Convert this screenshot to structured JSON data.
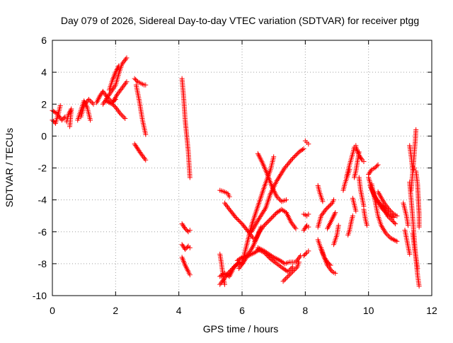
{
  "chart_data": {
    "type": "scatter",
    "title": "Day 079 of 2026, Sidereal Day-to-day VTEC variation (SDTVAR) for receiver ptgg",
    "xlabel": "GPS time / hours",
    "ylabel": "SDTVAR / TECUs",
    "xlim": [
      0,
      12
    ],
    "ylim": [
      -10,
      6
    ],
    "xticks": [
      "0",
      "2",
      "4",
      "6",
      "8",
      "10",
      "12"
    ],
    "yticks": [
      "-10",
      "-8",
      "-6",
      "-4",
      "-2",
      "0",
      "2",
      "4",
      "6"
    ],
    "grid": true,
    "marker": "+",
    "color": "#ff0000",
    "tracks": [
      [
        [
          0.0,
          1.0
        ],
        [
          0.1,
          0.8
        ],
        [
          0.2,
          1.5
        ],
        [
          0.25,
          1.9
        ]
      ],
      [
        [
          0.0,
          1.6
        ],
        [
          0.15,
          1.4
        ],
        [
          0.3,
          1.0
        ],
        [
          0.4,
          1.2
        ]
      ],
      [
        [
          0.45,
          0.9
        ],
        [
          0.5,
          1.3
        ],
        [
          0.6,
          1.7
        ],
        [
          0.55,
          0.6
        ]
      ],
      [
        [
          0.8,
          1.0
        ],
        [
          0.9,
          1.6
        ],
        [
          1.0,
          2.2
        ],
        [
          1.1,
          1.8
        ],
        [
          1.2,
          1.0
        ]
      ],
      [
        [
          0.9,
          1.2
        ],
        [
          1.0,
          1.9
        ],
        [
          1.15,
          2.3
        ],
        [
          1.3,
          2.0
        ]
      ],
      [
        [
          1.4,
          2.1
        ],
        [
          1.5,
          2.5
        ],
        [
          1.6,
          2.8
        ],
        [
          1.75,
          2.4
        ],
        [
          1.9,
          2.1
        ],
        [
          2.0,
          2.3
        ]
      ],
      [
        [
          1.6,
          2.0
        ],
        [
          1.8,
          2.6
        ],
        [
          2.0,
          3.2
        ],
        [
          2.1,
          3.9
        ],
        [
          2.2,
          4.5
        ],
        [
          2.35,
          4.9
        ]
      ],
      [
        [
          1.8,
          2.9
        ],
        [
          1.9,
          3.5
        ],
        [
          2.0,
          4.0
        ],
        [
          2.1,
          4.4
        ]
      ],
      [
        [
          1.7,
          2.2
        ],
        [
          1.9,
          2.0
        ],
        [
          2.0,
          1.8
        ],
        [
          2.15,
          1.4
        ],
        [
          2.3,
          1.1
        ]
      ],
      [
        [
          1.9,
          2.1
        ],
        [
          2.05,
          2.6
        ],
        [
          2.2,
          3.0
        ],
        [
          2.35,
          3.4
        ]
      ],
      [
        [
          2.6,
          3.6
        ],
        [
          2.7,
          3.4
        ],
        [
          2.8,
          3.3
        ],
        [
          2.9,
          3.2
        ],
        [
          2.95,
          3.2
        ]
      ],
      [
        [
          2.65,
          3.2
        ],
        [
          2.75,
          2.2
        ],
        [
          2.85,
          1.0
        ],
        [
          2.95,
          0.1
        ]
      ],
      [
        [
          2.6,
          -0.5
        ],
        [
          2.7,
          -0.8
        ],
        [
          2.8,
          -1.1
        ],
        [
          2.95,
          -1.5
        ]
      ],
      [
        [
          4.1,
          3.6
        ],
        [
          4.15,
          2.5
        ],
        [
          4.2,
          1.0
        ],
        [
          4.3,
          -1.0
        ],
        [
          4.35,
          -2.6
        ]
      ],
      [
        [
          4.1,
          -5.5
        ],
        [
          4.2,
          -5.8
        ],
        [
          4.3,
          -6.0
        ],
        [
          4.35,
          -5.9
        ]
      ],
      [
        [
          4.1,
          -6.8
        ],
        [
          4.2,
          -7.1
        ],
        [
          4.3,
          -6.9
        ],
        [
          4.35,
          -7.0
        ]
      ],
      [
        [
          4.1,
          -7.6
        ],
        [
          4.2,
          -8.1
        ],
        [
          4.3,
          -8.5
        ],
        [
          4.35,
          -8.7
        ]
      ],
      [
        [
          5.3,
          -7.4
        ],
        [
          5.35,
          -8.0
        ],
        [
          5.4,
          -8.8
        ],
        [
          5.45,
          -9.3
        ]
      ],
      [
        [
          5.3,
          -9.3
        ],
        [
          5.45,
          -8.9
        ],
        [
          5.6,
          -8.5
        ],
        [
          5.8,
          -8.1
        ],
        [
          6.0,
          -7.9
        ]
      ],
      [
        [
          5.3,
          -8.8
        ],
        [
          5.45,
          -8.6
        ],
        [
          5.6,
          -8.8
        ],
        [
          5.75,
          -8.2
        ],
        [
          5.9,
          -7.9
        ]
      ],
      [
        [
          5.3,
          -3.4
        ],
        [
          5.45,
          -3.5
        ],
        [
          5.55,
          -3.6
        ],
        [
          5.6,
          -3.8
        ]
      ],
      [
        [
          5.45,
          -4.2
        ],
        [
          5.6,
          -4.6
        ],
        [
          5.8,
          -5.1
        ],
        [
          6.0,
          -5.5
        ],
        [
          6.2,
          -6.0
        ],
        [
          6.35,
          -6.4
        ]
      ],
      [
        [
          5.85,
          -7.8
        ],
        [
          6.0,
          -7.6
        ],
        [
          6.2,
          -7.5
        ],
        [
          6.4,
          -7.3
        ],
        [
          6.55,
          -7.1
        ]
      ],
      [
        [
          5.9,
          -8.3
        ],
        [
          6.05,
          -7.9
        ],
        [
          6.2,
          -7.4
        ],
        [
          6.35,
          -6.9
        ],
        [
          6.5,
          -6.2
        ],
        [
          6.6,
          -5.7
        ]
      ],
      [
        [
          6.0,
          -8.0
        ],
        [
          6.15,
          -6.8
        ],
        [
          6.3,
          -5.6
        ],
        [
          6.5,
          -4.4
        ],
        [
          6.7,
          -3.2
        ],
        [
          6.9,
          -2.1
        ],
        [
          7.0,
          -1.3
        ]
      ],
      [
        [
          6.3,
          -6.0
        ],
        [
          6.5,
          -5.3
        ],
        [
          6.75,
          -4.5
        ],
        [
          6.9,
          -3.6
        ],
        [
          7.1,
          -2.8
        ],
        [
          7.35,
          -2.0
        ],
        [
          7.6,
          -1.4
        ],
        [
          7.8,
          -1.0
        ],
        [
          7.95,
          -0.8
        ]
      ],
      [
        [
          6.5,
          -1.1
        ],
        [
          6.65,
          -1.7
        ],
        [
          6.8,
          -2.4
        ],
        [
          6.95,
          -3.2
        ],
        [
          7.1,
          -3.8
        ],
        [
          7.25,
          -4.1
        ],
        [
          7.4,
          -4.0
        ]
      ],
      [
        [
          6.4,
          -6.6
        ],
        [
          6.55,
          -6.0
        ],
        [
          6.7,
          -5.6
        ],
        [
          6.9,
          -5.2
        ],
        [
          7.1,
          -4.8
        ],
        [
          7.25,
          -4.6
        ],
        [
          7.4,
          -4.8
        ],
        [
          7.55,
          -5.4
        ],
        [
          7.7,
          -5.8
        ]
      ],
      [
        [
          6.5,
          -7.1
        ],
        [
          6.7,
          -7.3
        ],
        [
          6.9,
          -7.7
        ],
        [
          7.1,
          -8.0
        ],
        [
          7.3,
          -8.3
        ],
        [
          7.45,
          -8.5
        ],
        [
          7.6,
          -8.2
        ]
      ],
      [
        [
          6.5,
          -7.0
        ],
        [
          6.7,
          -7.2
        ],
        [
          6.85,
          -7.4
        ],
        [
          7.0,
          -7.6
        ],
        [
          7.2,
          -7.8
        ],
        [
          7.35,
          -8.0
        ],
        [
          7.5,
          -7.9
        ],
        [
          7.7,
          -7.9
        ],
        [
          7.85,
          -7.5
        ]
      ],
      [
        [
          7.3,
          -9.1
        ],
        [
          7.45,
          -8.8
        ],
        [
          7.6,
          -8.5
        ],
        [
          7.75,
          -8.2
        ],
        [
          7.8,
          -7.9
        ]
      ],
      [
        [
          8.0,
          -0.3
        ],
        [
          8.05,
          -0.4
        ],
        [
          8.1,
          -0.5
        ]
      ],
      [
        [
          7.95,
          -4.9
        ],
        [
          8.05,
          -5.0
        ],
        [
          8.1,
          -4.9
        ]
      ],
      [
        [
          7.95,
          -5.9
        ],
        [
          8.05,
          -5.6
        ],
        [
          8.1,
          -5.7
        ]
      ],
      [
        [
          7.95,
          -7.5
        ],
        [
          8.05,
          -7.3
        ],
        [
          8.1,
          -7.2
        ]
      ],
      [
        [
          8.4,
          -3.1
        ],
        [
          8.45,
          -3.5
        ],
        [
          8.55,
          -4.1
        ]
      ],
      [
        [
          8.4,
          -5.7
        ],
        [
          8.5,
          -5.0
        ],
        [
          8.65,
          -4.6
        ],
        [
          8.75,
          -4.4
        ],
        [
          8.85,
          -4.2
        ],
        [
          8.9,
          -4.0
        ]
      ],
      [
        [
          8.4,
          -6.5
        ],
        [
          8.5,
          -7.1
        ],
        [
          8.6,
          -7.6
        ],
        [
          8.7,
          -8.1
        ],
        [
          8.85,
          -8.5
        ],
        [
          8.95,
          -8.6
        ]
      ],
      [
        [
          8.5,
          -7.0
        ],
        [
          8.6,
          -7.6
        ],
        [
          8.7,
          -7.9
        ],
        [
          8.8,
          -8.1
        ]
      ],
      [
        [
          8.7,
          -5.8
        ],
        [
          8.85,
          -5.2
        ],
        [
          8.95,
          -4.8
        ]
      ],
      [
        [
          8.9,
          -6.8
        ],
        [
          9.0,
          -6.2
        ],
        [
          9.05,
          -5.6
        ]
      ],
      [
        [
          9.2,
          -3.4
        ],
        [
          9.25,
          -3.0
        ],
        [
          9.35,
          -2.4
        ],
        [
          9.4,
          -2.1
        ]
      ],
      [
        [
          9.3,
          -2.6
        ],
        [
          9.4,
          -1.8
        ],
        [
          9.5,
          -1.1
        ],
        [
          9.55,
          -0.7
        ],
        [
          9.6,
          -0.6
        ]
      ],
      [
        [
          9.35,
          -6.2
        ],
        [
          9.4,
          -5.9
        ],
        [
          9.45,
          -5.4
        ],
        [
          9.5,
          -5.0
        ]
      ],
      [
        [
          9.5,
          -3.9
        ],
        [
          9.55,
          -4.3
        ],
        [
          9.6,
          -4.7
        ]
      ],
      [
        [
          9.55,
          -2.6
        ],
        [
          9.6,
          -2.2
        ],
        [
          9.65,
          -1.6
        ],
        [
          9.7,
          -1.0
        ]
      ],
      [
        [
          9.6,
          -0.7
        ],
        [
          9.7,
          -1.2
        ],
        [
          9.8,
          -1.5
        ],
        [
          9.85,
          -1.6
        ]
      ],
      [
        [
          9.7,
          -2.6
        ],
        [
          9.75,
          -3.4
        ],
        [
          9.8,
          -3.9
        ],
        [
          9.85,
          -4.4
        ]
      ],
      [
        [
          9.85,
          -4.6
        ],
        [
          9.9,
          -5.2
        ],
        [
          9.95,
          -5.6
        ]
      ],
      [
        [
          10.0,
          -2.4
        ],
        [
          10.1,
          -2.1
        ],
        [
          10.2,
          -2.0
        ],
        [
          10.3,
          -1.8
        ]
      ],
      [
        [
          10.05,
          -3.1
        ],
        [
          10.15,
          -3.6
        ],
        [
          10.25,
          -4.0
        ],
        [
          10.35,
          -4.3
        ],
        [
          10.45,
          -4.6
        ],
        [
          10.55,
          -4.8
        ]
      ],
      [
        [
          10.0,
          -2.6
        ],
        [
          10.1,
          -3.3
        ],
        [
          10.2,
          -3.8
        ],
        [
          10.35,
          -4.2
        ],
        [
          10.5,
          -4.5
        ],
        [
          10.65,
          -4.9
        ],
        [
          10.8,
          -5.1
        ]
      ],
      [
        [
          10.1,
          -3.0
        ],
        [
          10.2,
          -4.0
        ],
        [
          10.3,
          -5.0
        ],
        [
          10.4,
          -5.6
        ],
        [
          10.55,
          -6.1
        ],
        [
          10.7,
          -6.4
        ],
        [
          10.9,
          -6.6
        ]
      ],
      [
        [
          10.3,
          -3.5
        ],
        [
          10.5,
          -4.2
        ],
        [
          10.65,
          -4.6
        ],
        [
          10.8,
          -4.9
        ],
        [
          10.9,
          -5.0
        ]
      ],
      [
        [
          10.45,
          -4.4
        ],
        [
          10.6,
          -5.0
        ],
        [
          10.75,
          -5.3
        ],
        [
          10.85,
          -5.5
        ]
      ],
      [
        [
          11.1,
          -4.2
        ],
        [
          11.15,
          -4.6
        ],
        [
          11.2,
          -5.0
        ],
        [
          11.25,
          -5.6
        ]
      ],
      [
        [
          11.15,
          -5.9
        ],
        [
          11.2,
          -6.4
        ],
        [
          11.25,
          -6.9
        ],
        [
          11.3,
          -7.4
        ]
      ],
      [
        [
          11.3,
          -2.9
        ],
        [
          11.35,
          -4.0
        ],
        [
          11.4,
          -5.2
        ],
        [
          11.45,
          -6.5
        ],
        [
          11.5,
          -7.7
        ],
        [
          11.55,
          -8.7
        ],
        [
          11.6,
          -9.4
        ]
      ],
      [
        [
          11.35,
          -3.4
        ],
        [
          11.38,
          -2.6
        ],
        [
          11.42,
          -1.8
        ],
        [
          11.45,
          -1.0
        ],
        [
          11.48,
          -0.3
        ],
        [
          11.5,
          0.4
        ]
      ],
      [
        [
          11.3,
          -0.6
        ],
        [
          11.35,
          -1.3
        ],
        [
          11.4,
          -2.2
        ],
        [
          11.45,
          -2.0
        ]
      ],
      [
        [
          11.4,
          -6.1
        ],
        [
          11.45,
          -7.0
        ],
        [
          11.5,
          -7.6
        ],
        [
          11.55,
          -8.3
        ]
      ],
      [
        [
          11.5,
          -2.2
        ],
        [
          11.55,
          -3.0
        ],
        [
          11.6,
          -4.9
        ],
        [
          11.6,
          -5.7
        ]
      ]
    ]
  }
}
